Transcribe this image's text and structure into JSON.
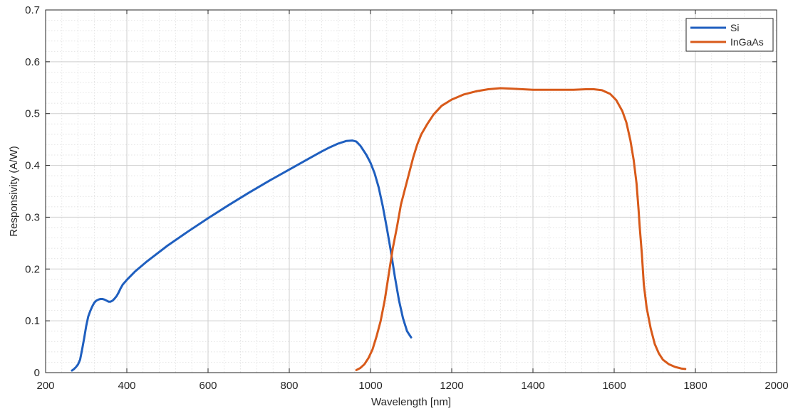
{
  "chart_data": {
    "type": "line",
    "xlabel": "Wavelength [nm]",
    "ylabel": "Responsivity (A/W)",
    "xlim": [
      200,
      2000
    ],
    "ylim": [
      0,
      0.7
    ],
    "x_ticks": [
      200,
      400,
      600,
      800,
      1000,
      1200,
      1400,
      1600,
      1800,
      2000
    ],
    "y_ticks": [
      0,
      0.1,
      0.2,
      0.3,
      0.4,
      0.5,
      0.6,
      0.7
    ],
    "grid": true,
    "minor_grid": true,
    "legend_position": "top-right",
    "series": [
      {
        "name": "Si",
        "color": "#1f5fbf",
        "points": [
          [
            265,
            0.004
          ],
          [
            270,
            0.007
          ],
          [
            275,
            0.011
          ],
          [
            280,
            0.016
          ],
          [
            285,
            0.025
          ],
          [
            290,
            0.045
          ],
          [
            295,
            0.067
          ],
          [
            300,
            0.09
          ],
          [
            305,
            0.108
          ],
          [
            310,
            0.119
          ],
          [
            315,
            0.128
          ],
          [
            320,
            0.135
          ],
          [
            325,
            0.139
          ],
          [
            330,
            0.141
          ],
          [
            335,
            0.142
          ],
          [
            340,
            0.142
          ],
          [
            345,
            0.141
          ],
          [
            350,
            0.139
          ],
          [
            355,
            0.137
          ],
          [
            360,
            0.137
          ],
          [
            365,
            0.139
          ],
          [
            370,
            0.143
          ],
          [
            375,
            0.148
          ],
          [
            380,
            0.155
          ],
          [
            385,
            0.163
          ],
          [
            390,
            0.17
          ],
          [
            400,
            0.179
          ],
          [
            420,
            0.195
          ],
          [
            450,
            0.215
          ],
          [
            500,
            0.245
          ],
          [
            550,
            0.272
          ],
          [
            600,
            0.298
          ],
          [
            650,
            0.323
          ],
          [
            700,
            0.347
          ],
          [
            750,
            0.37
          ],
          [
            800,
            0.392
          ],
          [
            850,
            0.414
          ],
          [
            880,
            0.427
          ],
          [
            900,
            0.435
          ],
          [
            920,
            0.442
          ],
          [
            940,
            0.447
          ],
          [
            955,
            0.448
          ],
          [
            965,
            0.446
          ],
          [
            975,
            0.438
          ],
          [
            990,
            0.42
          ],
          [
            1000,
            0.405
          ],
          [
            1010,
            0.385
          ],
          [
            1020,
            0.358
          ],
          [
            1030,
            0.322
          ],
          [
            1040,
            0.28
          ],
          [
            1050,
            0.235
          ],
          [
            1060,
            0.185
          ],
          [
            1070,
            0.14
          ],
          [
            1080,
            0.105
          ],
          [
            1090,
            0.08
          ],
          [
            1100,
            0.068
          ]
        ]
      },
      {
        "name": "InGaAs",
        "color": "#d85a1a",
        "points": [
          [
            965,
            0.005
          ],
          [
            975,
            0.009
          ],
          [
            985,
            0.016
          ],
          [
            995,
            0.028
          ],
          [
            1005,
            0.045
          ],
          [
            1015,
            0.07
          ],
          [
            1025,
            0.1
          ],
          [
            1035,
            0.14
          ],
          [
            1045,
            0.19
          ],
          [
            1055,
            0.24
          ],
          [
            1065,
            0.28
          ],
          [
            1075,
            0.325
          ],
          [
            1085,
            0.355
          ],
          [
            1095,
            0.385
          ],
          [
            1105,
            0.415
          ],
          [
            1115,
            0.44
          ],
          [
            1125,
            0.46
          ],
          [
            1140,
            0.48
          ],
          [
            1155,
            0.498
          ],
          [
            1175,
            0.515
          ],
          [
            1200,
            0.527
          ],
          [
            1230,
            0.537
          ],
          [
            1260,
            0.543
          ],
          [
            1290,
            0.547
          ],
          [
            1320,
            0.549
          ],
          [
            1350,
            0.548
          ],
          [
            1400,
            0.546
          ],
          [
            1450,
            0.546
          ],
          [
            1500,
            0.546
          ],
          [
            1530,
            0.547
          ],
          [
            1550,
            0.547
          ],
          [
            1570,
            0.545
          ],
          [
            1590,
            0.538
          ],
          [
            1605,
            0.526
          ],
          [
            1620,
            0.505
          ],
          [
            1630,
            0.483
          ],
          [
            1640,
            0.448
          ],
          [
            1648,
            0.41
          ],
          [
            1655,
            0.365
          ],
          [
            1660,
            0.315
          ],
          [
            1663,
            0.28
          ],
          [
            1668,
            0.23
          ],
          [
            1673,
            0.17
          ],
          [
            1680,
            0.125
          ],
          [
            1690,
            0.085
          ],
          [
            1700,
            0.055
          ],
          [
            1710,
            0.037
          ],
          [
            1720,
            0.025
          ],
          [
            1735,
            0.016
          ],
          [
            1750,
            0.011
          ],
          [
            1765,
            0.008
          ],
          [
            1775,
            0.007
          ]
        ]
      }
    ]
  }
}
